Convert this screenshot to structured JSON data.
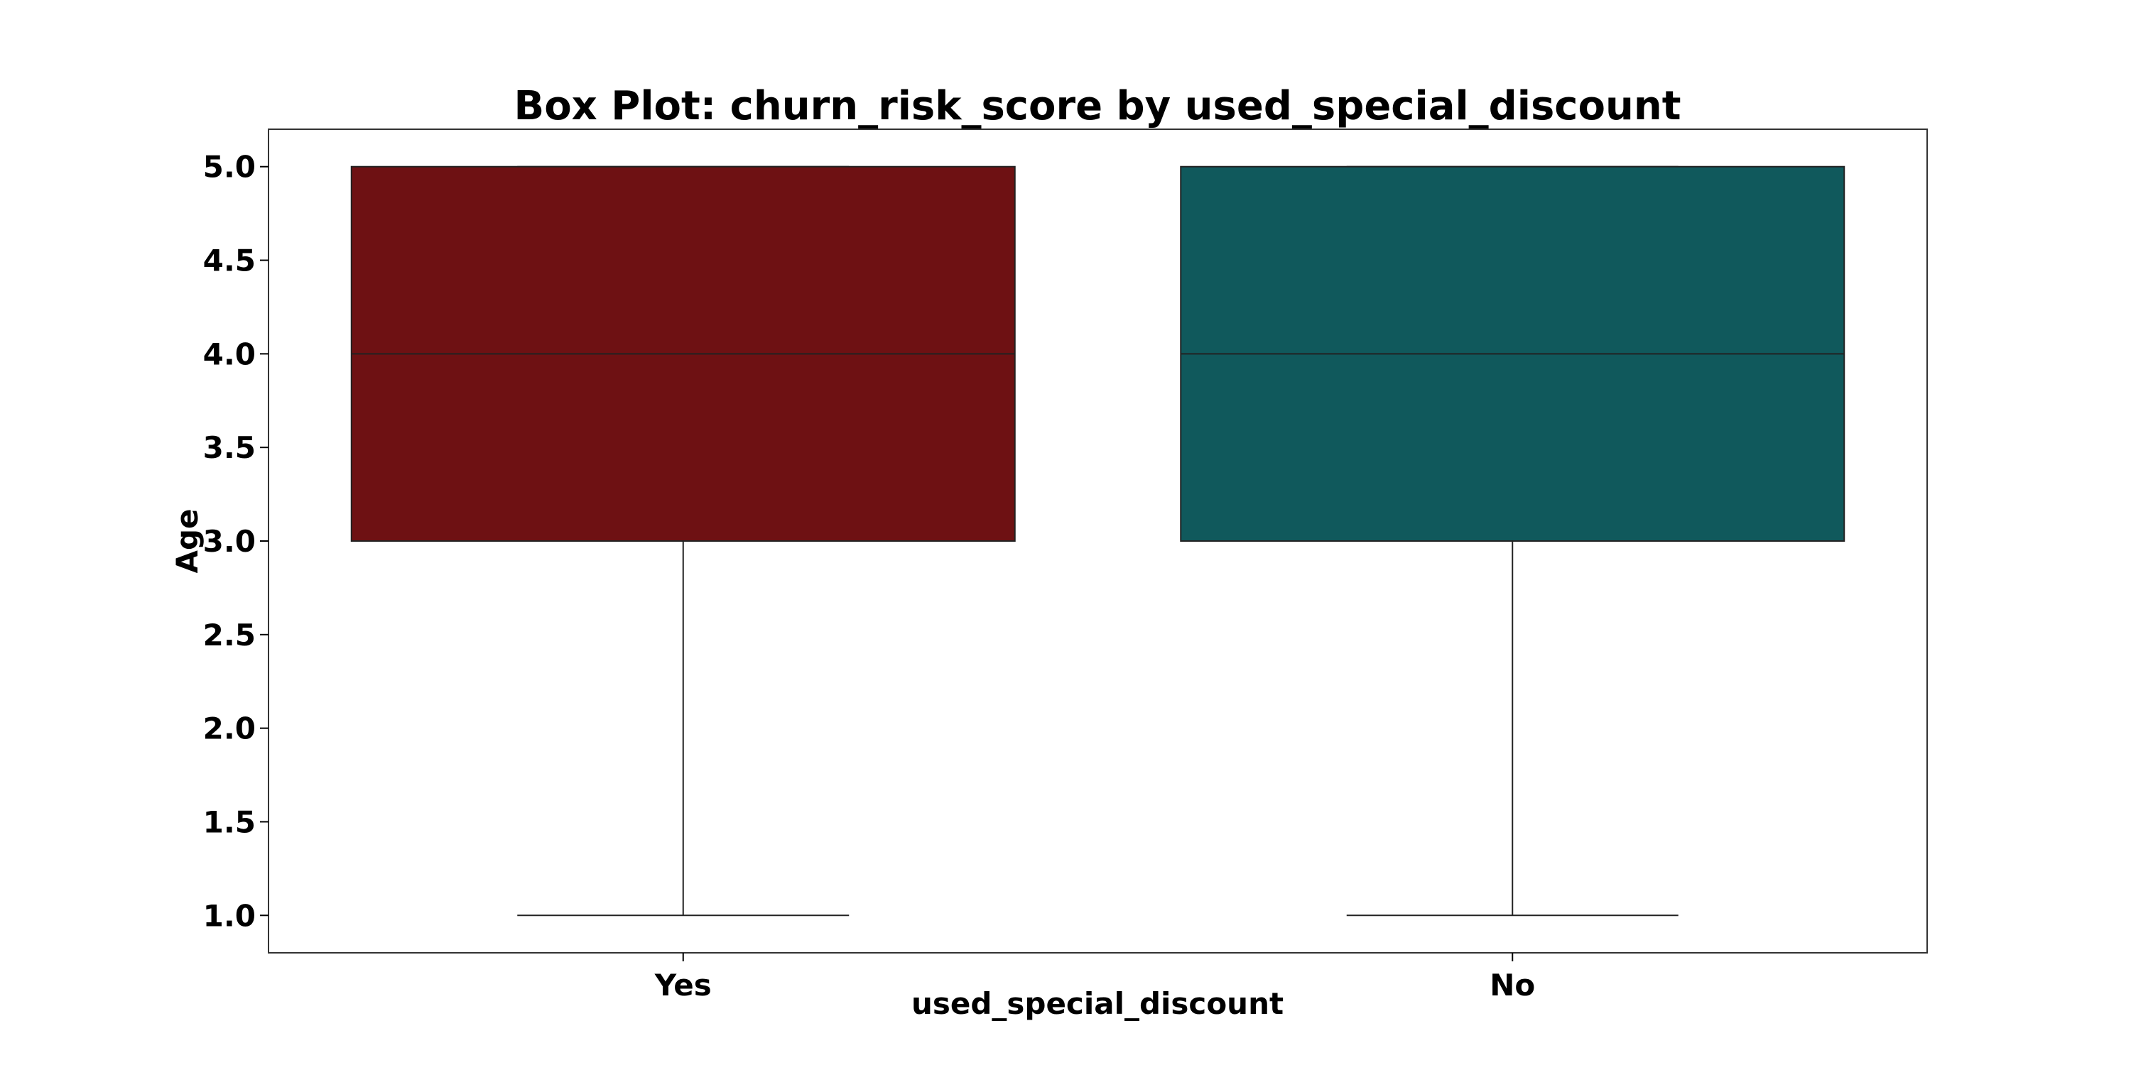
{
  "chart_data": {
    "type": "box",
    "title": "Box Plot: churn_risk_score by used_special_discount",
    "xlabel": "used_special_discount",
    "ylabel": "Age",
    "categories": [
      "Yes",
      "No"
    ],
    "boxes": [
      {
        "category": "Yes",
        "min": 1.0,
        "q1": 3.0,
        "median": 4.0,
        "q3": 5.0,
        "max": 5.0,
        "color": "#6e1113"
      },
      {
        "category": "No",
        "min": 1.0,
        "q1": 3.0,
        "median": 4.0,
        "q3": 5.0,
        "max": 5.0,
        "color": "#10595c"
      }
    ],
    "ylim": [
      0.8,
      5.2
    ],
    "yticks": [
      "1.0",
      "1.5",
      "2.0",
      "2.5",
      "3.0",
      "3.5",
      "4.0",
      "4.5",
      "5.0"
    ],
    "grid": false,
    "legend": "none"
  }
}
